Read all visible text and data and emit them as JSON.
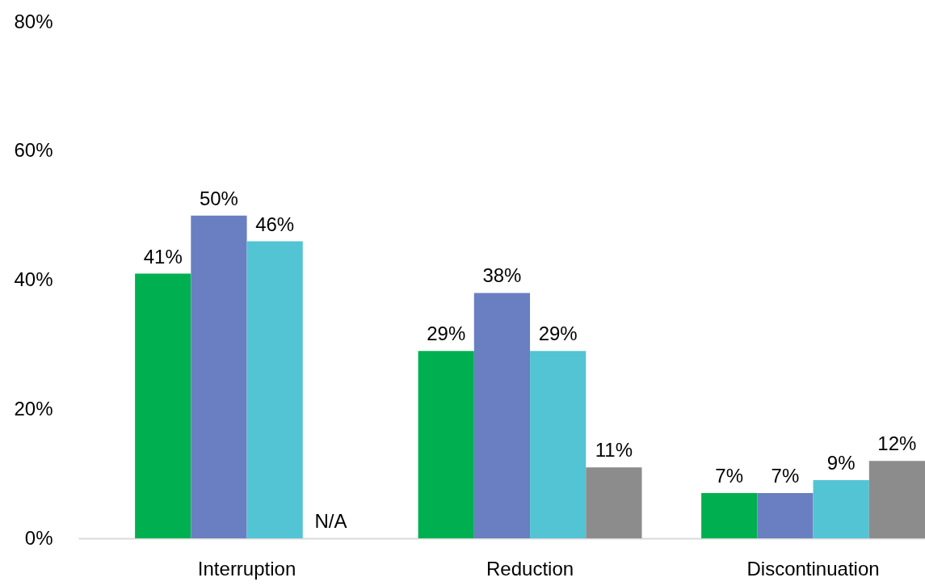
{
  "chart_data": {
    "type": "bar",
    "categories": [
      "Interruption",
      "Reduction",
      "Discontinuation"
    ],
    "series": [
      {
        "color": "#00b050",
        "values": [
          41,
          29,
          7
        ],
        "value_labels": [
          "41%",
          "29%",
          "7%"
        ]
      },
      {
        "color": "#6a7fc1",
        "values": [
          50,
          38,
          7
        ],
        "value_labels": [
          "50%",
          "38%",
          "7%"
        ]
      },
      {
        "color": "#53c4d4",
        "values": [
          46,
          29,
          9
        ],
        "value_labels": [
          "46%",
          "29%",
          "9%"
        ]
      },
      {
        "color": "#8c8c8c",
        "values": [
          null,
          11,
          12
        ],
        "value_labels": [
          "N/A",
          "11%",
          "12%"
        ]
      }
    ],
    "ylim": [
      0,
      80
    ],
    "yticks": [
      {
        "value": 0,
        "label": "0%"
      },
      {
        "value": 20,
        "label": "20%"
      },
      {
        "value": 40,
        "label": "40%"
      },
      {
        "value": 60,
        "label": "60%"
      },
      {
        "value": 80,
        "label": "80%"
      }
    ],
    "grid": false,
    "legend": false
  }
}
